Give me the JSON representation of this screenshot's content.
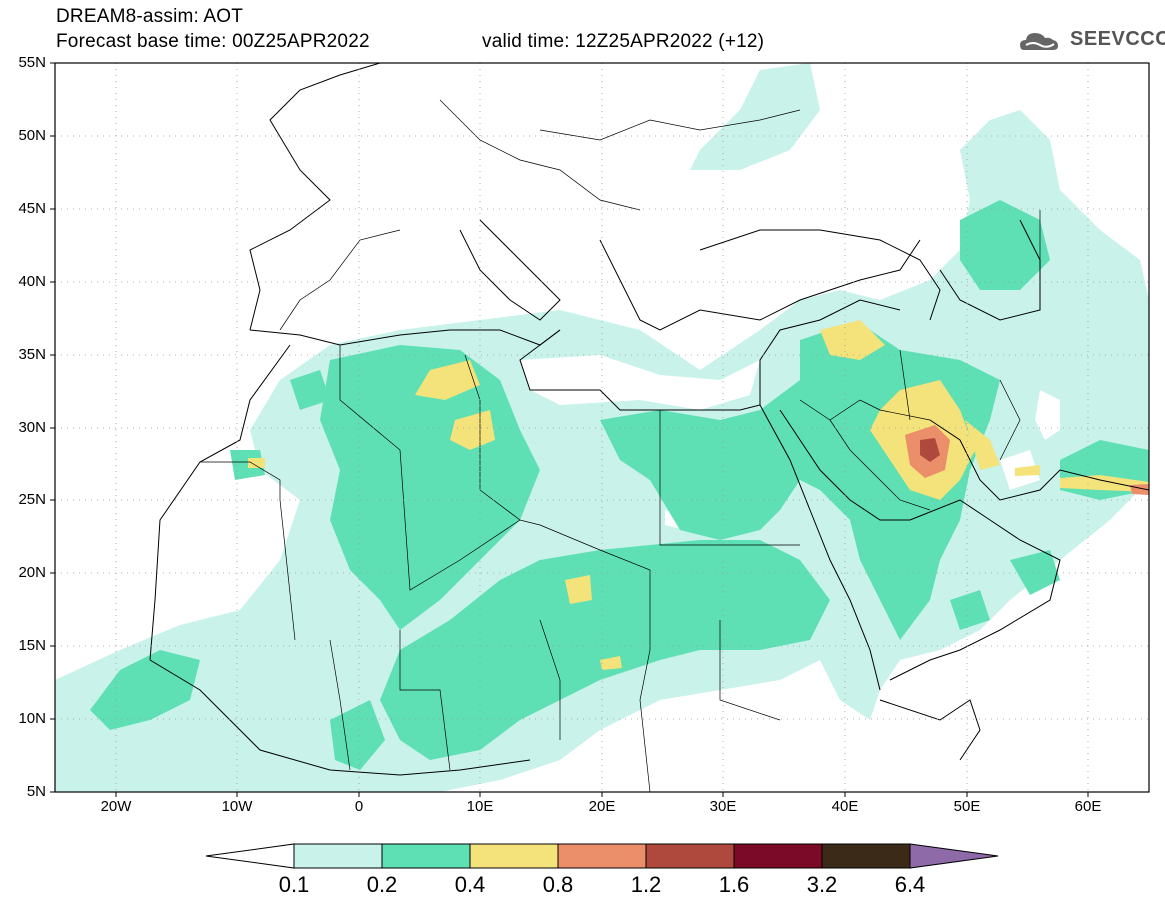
{
  "header": {
    "title": "DREAM8-assim: AOT",
    "base_time": "Forecast base time: 00Z25APR2022",
    "valid_time": "valid time: 12Z25APR2022 (+12)",
    "logo_text": "SEEVCCC"
  },
  "map": {
    "lat_labels": [
      "55N",
      "50N",
      "45N",
      "40N",
      "35N",
      "30N",
      "25N",
      "20N",
      "15N",
      "10N",
      "5N"
    ],
    "lon_labels": [
      "20W",
      "10W",
      "0",
      "10E",
      "20E",
      "30E",
      "40E",
      "50E",
      "60E"
    ],
    "lon_range": [
      -25,
      65
    ],
    "lat_range": [
      5,
      55
    ],
    "colors": {
      "c01": "#c8f2ea",
      "c02": "#5ee0b4",
      "c04": "#f4e27a",
      "c08": "#eb8f6a",
      "c12": "#b0493d"
    }
  },
  "colorbar": {
    "labels": [
      "0.1",
      "0.2",
      "0.4",
      "0.8",
      "1.2",
      "1.6",
      "3.2",
      "6.4"
    ],
    "colors": [
      "#c8f2ea",
      "#5ee0b4",
      "#f4e27a",
      "#eb8f6a",
      "#b0493d",
      "#7a0a28",
      "#3b2a17",
      "#8e6aa8"
    ]
  }
}
